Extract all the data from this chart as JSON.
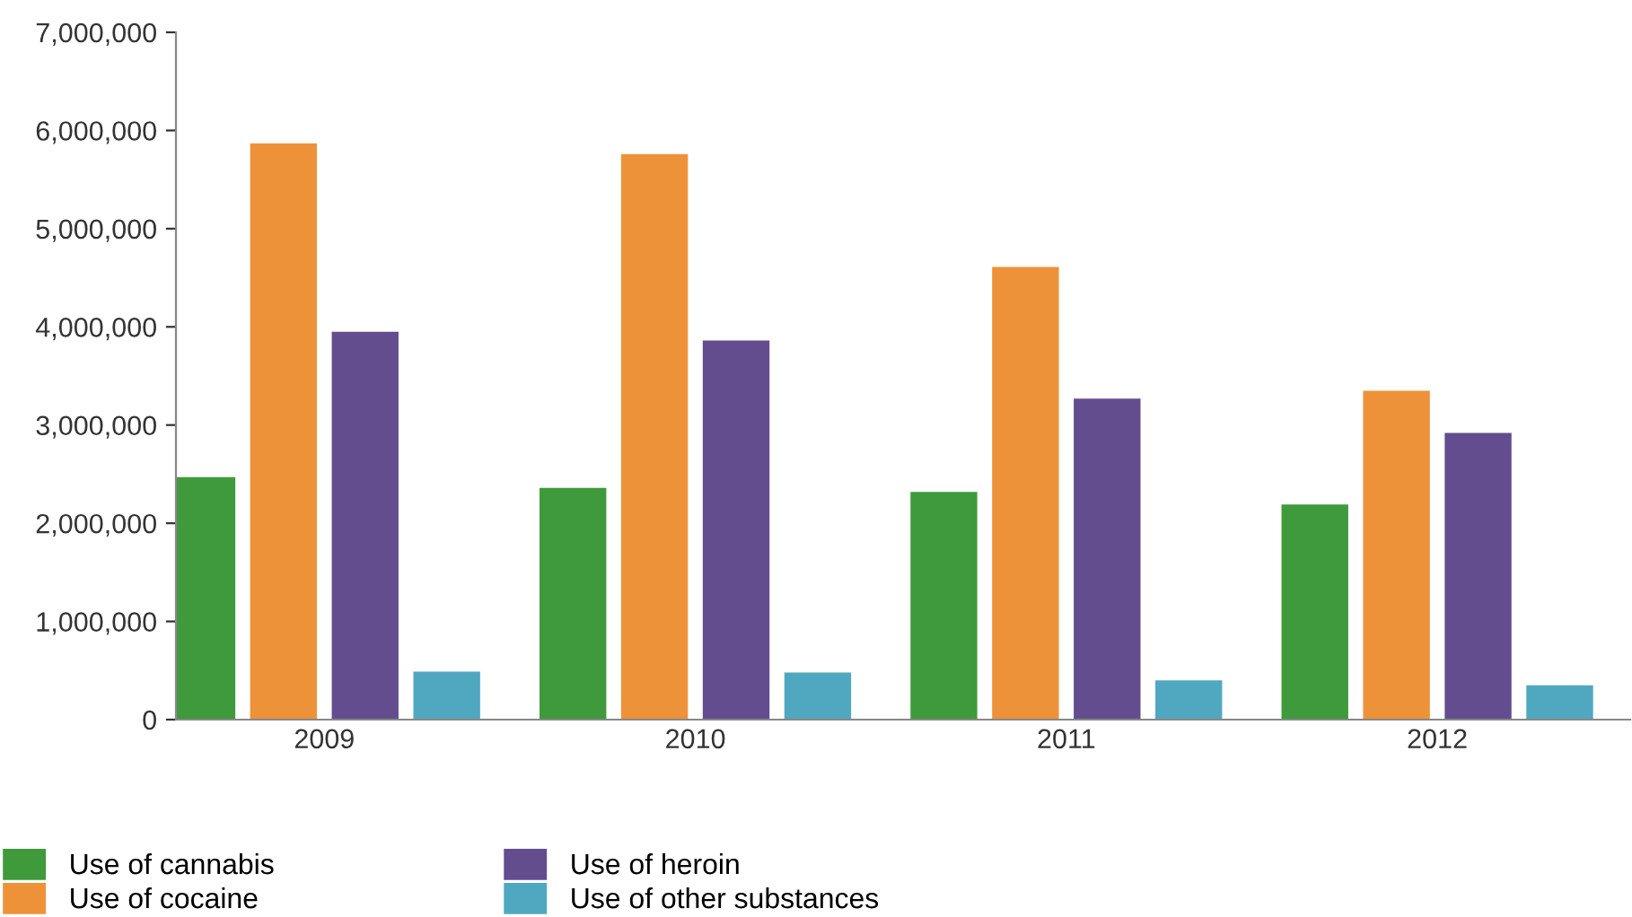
{
  "chart_data": {
    "type": "bar",
    "categories": [
      "2009",
      "2010",
      "2011",
      "2012"
    ],
    "series": [
      {
        "name": "Use of cannabis",
        "color": "#3f9a3c",
        "values": [
          2470000,
          2360000,
          2320000,
          2190000
        ]
      },
      {
        "name": "Use of cocaine",
        "color": "#ee923a",
        "values": [
          5870000,
          5760000,
          4610000,
          3350000
        ]
      },
      {
        "name": "Use of heroin",
        "color": "#634d8f",
        "values": [
          3950000,
          3860000,
          3270000,
          2920000
        ]
      },
      {
        "name": "Use of other substances",
        "color": "#4fa8c0",
        "values": [
          490000,
          480000,
          400000,
          350000
        ]
      }
    ],
    "ylim": [
      0,
      7000000
    ],
    "yticks": [
      {
        "value": 0,
        "label": "0"
      },
      {
        "value": 1000000,
        "label": "1,000,000"
      },
      {
        "value": 2000000,
        "label": "2,000,000"
      },
      {
        "value": 3000000,
        "label": "3,000,000"
      },
      {
        "value": 4000000,
        "label": "4,000,000"
      },
      {
        "value": 5000000,
        "label": "5,000,000"
      },
      {
        "value": 6000000,
        "label": "6,000,000"
      },
      {
        "value": 7000000,
        "label": "7,000,000"
      }
    ],
    "grid": false,
    "legend": "bottom left"
  }
}
